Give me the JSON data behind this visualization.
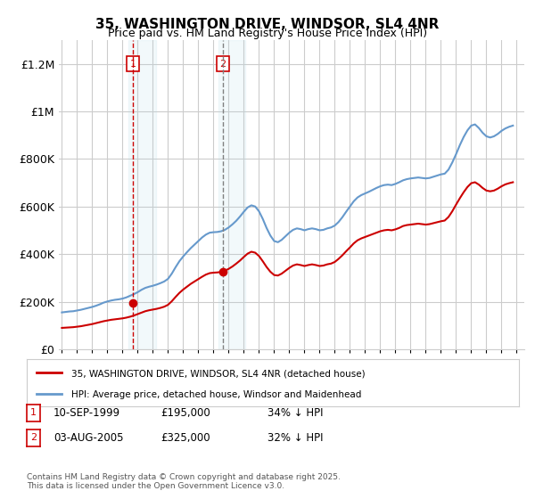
{
  "title": "35, WASHINGTON DRIVE, WINDSOR, SL4 4NR",
  "subtitle": "Price paid vs. HM Land Registry's House Price Index (HPI)",
  "ylabel": "",
  "xlabel": "",
  "ylim": [
    0,
    1300000
  ],
  "yticks": [
    0,
    200000,
    400000,
    600000,
    800000,
    1000000,
    1200000
  ],
  "ytick_labels": [
    "£0",
    "£200K",
    "£400K",
    "£600K",
    "£800K",
    "£1M",
    "£1.2M"
  ],
  "background_color": "#ffffff",
  "grid_color": "#cccccc",
  "sale1_date": 1999.7,
  "sale1_price": 195000,
  "sale1_label": "1",
  "sale2_date": 2005.6,
  "sale2_price": 325000,
  "sale2_label": "2",
  "line_red_color": "#cc0000",
  "line_blue_color": "#6699cc",
  "legend_entries": [
    "35, WASHINGTON DRIVE, WINDSOR, SL4 4NR (detached house)",
    "HPI: Average price, detached house, Windsor and Maidenhead"
  ],
  "table_rows": [
    [
      "1",
      "10-SEP-1999",
      "£195,000",
      "34% ↓ HPI"
    ],
    [
      "2",
      "03-AUG-2005",
      "£325,000",
      "32% ↓ HPI"
    ]
  ],
  "copyright_text": "Contains HM Land Registry data © Crown copyright and database right 2025.\nThis data is licensed under the Open Government Licence v3.0.",
  "hpi_data": {
    "years": [
      1995.0,
      1995.25,
      1995.5,
      1995.75,
      1996.0,
      1996.25,
      1996.5,
      1996.75,
      1997.0,
      1997.25,
      1997.5,
      1997.75,
      1998.0,
      1998.25,
      1998.5,
      1998.75,
      1999.0,
      1999.25,
      1999.5,
      1999.75,
      2000.0,
      2000.25,
      2000.5,
      2000.75,
      2001.0,
      2001.25,
      2001.5,
      2001.75,
      2002.0,
      2002.25,
      2002.5,
      2002.75,
      2003.0,
      2003.25,
      2003.5,
      2003.75,
      2004.0,
      2004.25,
      2004.5,
      2004.75,
      2005.0,
      2005.25,
      2005.5,
      2005.75,
      2006.0,
      2006.25,
      2006.5,
      2006.75,
      2007.0,
      2007.25,
      2007.5,
      2007.75,
      2008.0,
      2008.25,
      2008.5,
      2008.75,
      2009.0,
      2009.25,
      2009.5,
      2009.75,
      2010.0,
      2010.25,
      2010.5,
      2010.75,
      2011.0,
      2011.25,
      2011.5,
      2011.75,
      2012.0,
      2012.25,
      2012.5,
      2012.75,
      2013.0,
      2013.25,
      2013.5,
      2013.75,
      2014.0,
      2014.25,
      2014.5,
      2014.75,
      2015.0,
      2015.25,
      2015.5,
      2015.75,
      2016.0,
      2016.25,
      2016.5,
      2016.75,
      2017.0,
      2017.25,
      2017.5,
      2017.75,
      2018.0,
      2018.25,
      2018.5,
      2018.75,
      2019.0,
      2019.25,
      2019.5,
      2019.75,
      2020.0,
      2020.25,
      2020.5,
      2020.75,
      2021.0,
      2021.25,
      2021.5,
      2021.75,
      2022.0,
      2022.25,
      2022.5,
      2022.75,
      2023.0,
      2023.25,
      2023.5,
      2023.75,
      2024.0,
      2024.25,
      2024.5,
      2024.75
    ],
    "values": [
      155000,
      157000,
      159000,
      160000,
      163000,
      166000,
      170000,
      174000,
      178000,
      183000,
      189000,
      196000,
      201000,
      205000,
      208000,
      210000,
      213000,
      218000,
      225000,
      232000,
      240000,
      250000,
      258000,
      263000,
      267000,
      272000,
      278000,
      285000,
      296000,
      318000,
      345000,
      370000,
      390000,
      408000,
      425000,
      440000,
      455000,
      470000,
      482000,
      490000,
      492000,
      493000,
      496000,
      502000,
      512000,
      525000,
      540000,
      558000,
      578000,
      596000,
      605000,
      600000,
      580000,
      548000,
      510000,
      478000,
      455000,
      450000,
      460000,
      475000,
      490000,
      502000,
      508000,
      505000,
      500000,
      505000,
      508000,
      505000,
      500000,
      502000,
      508000,
      512000,
      520000,
      535000,
      555000,
      578000,
      600000,
      622000,
      638000,
      648000,
      655000,
      662000,
      670000,
      678000,
      685000,
      690000,
      692000,
      690000,
      695000,
      702000,
      710000,
      715000,
      718000,
      720000,
      722000,
      720000,
      718000,
      720000,
      725000,
      730000,
      735000,
      738000,
      755000,
      785000,
      820000,
      858000,
      892000,
      920000,
      940000,
      945000,
      930000,
      910000,
      895000,
      890000,
      895000,
      905000,
      918000,
      928000,
      935000,
      940000
    ]
  },
  "red_data": {
    "years": [
      1995.0,
      1995.25,
      1995.5,
      1995.75,
      1996.0,
      1996.25,
      1996.5,
      1996.75,
      1997.0,
      1997.25,
      1997.5,
      1997.75,
      1998.0,
      1998.25,
      1998.5,
      1998.75,
      1999.0,
      1999.25,
      1999.5,
      1999.75,
      2000.0,
      2000.25,
      2000.5,
      2000.75,
      2001.0,
      2001.25,
      2001.5,
      2001.75,
      2002.0,
      2002.25,
      2002.5,
      2002.75,
      2003.0,
      2003.25,
      2003.5,
      2003.75,
      2004.0,
      2004.25,
      2004.5,
      2004.75,
      2005.0,
      2005.25,
      2005.5,
      2005.75,
      2006.0,
      2006.25,
      2006.5,
      2006.75,
      2007.0,
      2007.25,
      2007.5,
      2007.75,
      2008.0,
      2008.25,
      2008.5,
      2008.75,
      2009.0,
      2009.25,
      2009.5,
      2009.75,
      2010.0,
      2010.25,
      2010.5,
      2010.75,
      2011.0,
      2011.25,
      2011.5,
      2011.75,
      2012.0,
      2012.25,
      2012.5,
      2012.75,
      2013.0,
      2013.25,
      2013.5,
      2013.75,
      2014.0,
      2014.25,
      2014.5,
      2014.75,
      2015.0,
      2015.25,
      2015.5,
      2015.75,
      2016.0,
      2016.25,
      2016.5,
      2016.75,
      2017.0,
      2017.25,
      2017.5,
      2017.75,
      2018.0,
      2018.25,
      2018.5,
      2018.75,
      2019.0,
      2019.25,
      2019.5,
      2019.75,
      2020.0,
      2020.25,
      2020.5,
      2020.75,
      2021.0,
      2021.25,
      2021.5,
      2021.75,
      2022.0,
      2022.25,
      2022.5,
      2022.75,
      2023.0,
      2023.25,
      2023.5,
      2023.75,
      2024.0,
      2024.25,
      2024.5,
      2024.75
    ],
    "values": [
      90000,
      91000,
      92000,
      93000,
      95000,
      97000,
      100000,
      103000,
      106000,
      110000,
      114000,
      118000,
      121000,
      124000,
      126000,
      128000,
      130000,
      133000,
      137000,
      142000,
      148000,
      154000,
      160000,
      164000,
      167000,
      170000,
      174000,
      179000,
      187000,
      202000,
      220000,
      237000,
      251000,
      263000,
      275000,
      285000,
      295000,
      305000,
      314000,
      320000,
      322000,
      323000,
      325000,
      330000,
      338000,
      348000,
      360000,
      373000,
      388000,
      402000,
      410000,
      406000,
      392000,
      370000,
      346000,
      326000,
      312000,
      310000,
      318000,
      330000,
      342000,
      352000,
      357000,
      354000,
      350000,
      354000,
      357000,
      354000,
      350000,
      352000,
      357000,
      360000,
      367000,
      380000,
      395000,
      412000,
      428000,
      445000,
      458000,
      466000,
      472000,
      478000,
      484000,
      490000,
      496000,
      500000,
      502000,
      500000,
      504000,
      510000,
      518000,
      522000,
      524000,
      526000,
      528000,
      526000,
      524000,
      526000,
      530000,
      534000,
      538000,
      541000,
      556000,
      580000,
      608000,
      635000,
      660000,
      682000,
      698000,
      702000,
      692000,
      678000,
      667000,
      664000,
      667000,
      675000,
      685000,
      693000,
      698000,
      702000
    ]
  }
}
